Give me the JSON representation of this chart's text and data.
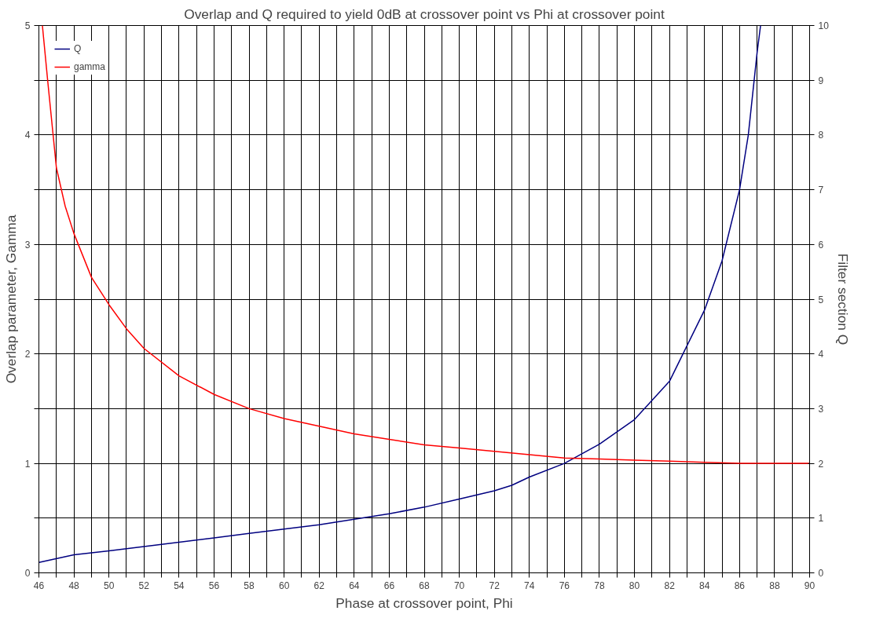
{
  "chart_data": {
    "type": "line",
    "title": "Overlap and Q required to yield 0dB at crossover point vs Phi at crossover point",
    "xlabel": "Phase at crossover point, Phi",
    "ylabel": "Overlap parameter, Gamma",
    "y2label": "Filter section Q",
    "xlim": [
      46,
      90
    ],
    "xticks": [
      46,
      {
        "value": 47,
        "label": null
      },
      48,
      {
        "value": 49,
        "label": null
      },
      50,
      {
        "value": 51,
        "label": null
      },
      52,
      {
        "value": 53,
        "label": null
      },
      54,
      {
        "value": 55,
        "label": null
      },
      56,
      {
        "value": 57,
        "label": null
      },
      58,
      {
        "value": 59,
        "label": null
      },
      60,
      {
        "value": 61,
        "label": null
      },
      62,
      {
        "value": 63,
        "label": null
      },
      64,
      {
        "value": 65,
        "label": null
      },
      66,
      {
        "value": 67,
        "label": null
      },
      68,
      {
        "value": 69,
        "label": null
      },
      70,
      {
        "value": 71,
        "label": null
      },
      72,
      {
        "value": 73,
        "label": null
      },
      74,
      {
        "value": 75,
        "label": null
      },
      76,
      {
        "value": 77,
        "label": null
      },
      78,
      {
        "value": 79,
        "label": null
      },
      80,
      {
        "value": 81,
        "label": null
      },
      82,
      {
        "value": 83,
        "label": null
      },
      84,
      {
        "value": 85,
        "label": null
      },
      86,
      {
        "value": 87,
        "label": null
      },
      88,
      {
        "value": 89,
        "label": null
      },
      90
    ],
    "ylim": [
      0,
      5
    ],
    "yticks": [
      0,
      {
        "value": 0.5,
        "label": null
      },
      1,
      {
        "value": 1.5,
        "label": null
      },
      2,
      {
        "value": 2.5,
        "label": null
      },
      3,
      {
        "value": 3.5,
        "label": null
      },
      4,
      {
        "value": 4.5,
        "label": null
      },
      5
    ],
    "y2lim": [
      0,
      10
    ],
    "y2ticks": [
      0,
      1,
      2,
      3,
      4,
      5,
      6,
      7,
      8,
      9,
      10
    ],
    "grid": true,
    "legend": "top left",
    "marker": "none",
    "line_style": "solid",
    "series": [
      {
        "name": "Q",
        "color": "#000080",
        "axis": "y2",
        "x": [
          46,
          48,
          50,
          52,
          54,
          56,
          58,
          60,
          62,
          64,
          66,
          68,
          70,
          72,
          73,
          74,
          76,
          78,
          80,
          82,
          84,
          85,
          86,
          86.5,
          87,
          87.2
        ],
        "values": [
          0.19,
          0.33,
          0.4,
          0.48,
          0.56,
          0.64,
          0.72,
          0.8,
          0.88,
          0.98,
          1.08,
          1.2,
          1.35,
          1.5,
          1.6,
          1.75,
          2.0,
          2.35,
          2.8,
          3.5,
          4.8,
          5.7,
          7.0,
          8.0,
          9.5,
          10
        ]
      },
      {
        "name": "gamma",
        "color": "#ff0000",
        "x": [
          46.2,
          46.5,
          47,
          47.5,
          48,
          49,
          50,
          51,
          52,
          54,
          56,
          58,
          60,
          62,
          64,
          66,
          68,
          70,
          72,
          74,
          76,
          78,
          80,
          82,
          84,
          86,
          88,
          90
        ],
        "values": [
          5,
          4.5,
          3.7,
          3.35,
          3.1,
          2.7,
          2.45,
          2.23,
          2.05,
          1.8,
          1.63,
          1.5,
          1.41,
          1.34,
          1.27,
          1.22,
          1.17,
          1.14,
          1.11,
          1.08,
          1.05,
          1.04,
          1.03,
          1.02,
          1.01,
          1.0,
          1.0,
          1.0
        ]
      }
    ]
  }
}
